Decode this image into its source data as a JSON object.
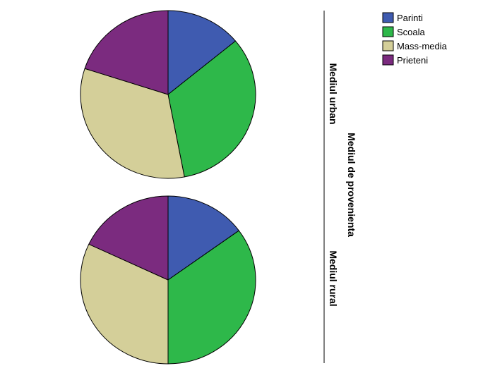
{
  "chart_data": {
    "type": "pie",
    "legend": {
      "position": "top-right",
      "entries": [
        {
          "label": "Parinti",
          "color": "#3f5bb0"
        },
        {
          "label": "Scoala",
          "color": "#2eb84a"
        },
        {
          "label": "Mass-media",
          "color": "#d4cf99"
        },
        {
          "label": "Prieteni",
          "color": "#7b2b7f"
        }
      ]
    },
    "facet_title": "Mediul de provenienta",
    "categories": [
      "Parinti",
      "Scoala",
      "Mass-media",
      "Prieteni"
    ],
    "panels": [
      {
        "name": "Mediul urban",
        "values": [
          14,
          33,
          33,
          20
        ]
      },
      {
        "name": "Mediul rural",
        "values": [
          15,
          35,
          32,
          18
        ]
      }
    ],
    "start_angle_deg": 0,
    "direction": "clockwise"
  }
}
